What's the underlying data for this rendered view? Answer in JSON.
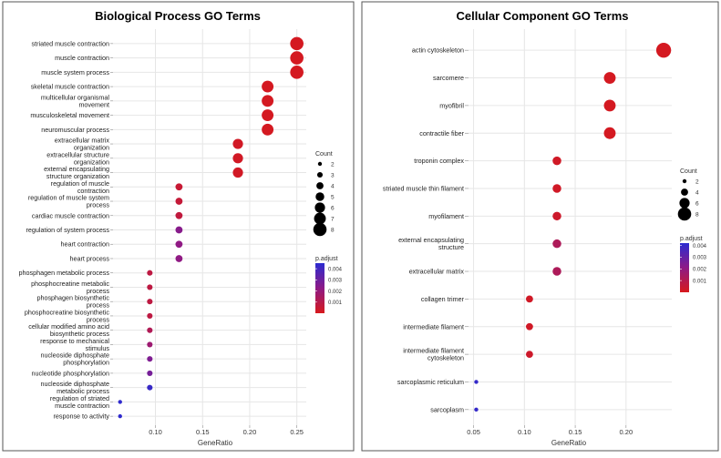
{
  "left_panel": {
    "title": "Biological Process GO Terms",
    "xlabel": "GeneRatio",
    "legend_count_title": "Count",
    "legend_padj_title": "p.adjust"
  },
  "right_panel": {
    "title": "Cellular Component GO Terms",
    "xlabel": "GeneRatio",
    "legend_count_title": "Count",
    "legend_padj_title": "p.adjust"
  },
  "colors": {
    "high_sig": "#d7191c",
    "mid": "#8e1a86",
    "low_sig": "#2b2bd0",
    "panel_border": "#555555",
    "grid": "#e6e6e6"
  },
  "chart_data": [
    {
      "type": "scatter",
      "title": "Biological Process GO Terms",
      "xlabel": "GeneRatio",
      "ylabel": "",
      "xlim": [
        0.055,
        0.26
      ],
      "xticks": [
        0.1,
        0.15,
        0.2,
        0.25
      ],
      "xtick_labels": [
        "0.10",
        "0.15",
        "0.20",
        "0.25"
      ],
      "grid": true,
      "legend_placement": "right",
      "size_legend": {
        "title": "Count",
        "values": [
          2,
          3,
          4,
          5,
          6,
          7,
          8
        ]
      },
      "color_legend": {
        "title": "p.adjust",
        "range": [
          0.0,
          0.0045
        ],
        "ticks": [
          0.004,
          0.003,
          0.002,
          0.001
        ],
        "tick_labels": [
          "0.004",
          "0.003",
          "0.002",
          "0.001"
        ]
      },
      "points": [
        {
          "term": [
            "striated muscle contraction"
          ],
          "x": 0.25,
          "count": 8,
          "p_adjust": 0.0001
        },
        {
          "term": [
            "muscle contraction"
          ],
          "x": 0.25,
          "count": 8,
          "p_adjust": 0.0001
        },
        {
          "term": [
            "muscle system process"
          ],
          "x": 0.25,
          "count": 8,
          "p_adjust": 0.0001
        },
        {
          "term": [
            "skeletal muscle contraction"
          ],
          "x": 0.219,
          "count": 7,
          "p_adjust": 0.0001
        },
        {
          "term": [
            "multicellular organismal",
            "movement"
          ],
          "x": 0.219,
          "count": 7,
          "p_adjust": 0.0001
        },
        {
          "term": [
            "musculoskeletal movement"
          ],
          "x": 0.219,
          "count": 7,
          "p_adjust": 0.0001
        },
        {
          "term": [
            "neuromuscular process"
          ],
          "x": 0.219,
          "count": 7,
          "p_adjust": 0.0001
        },
        {
          "term": [
            "extracellular matrix",
            "organization"
          ],
          "x": 0.1875,
          "count": 6,
          "p_adjust": 0.0002
        },
        {
          "term": [
            "extracellular structure",
            "organization"
          ],
          "x": 0.1875,
          "count": 6,
          "p_adjust": 0.0002
        },
        {
          "term": [
            "external encapsulating",
            "structure organization"
          ],
          "x": 0.1875,
          "count": 6,
          "p_adjust": 0.0002
        },
        {
          "term": [
            "regulation of muscle",
            "contraction"
          ],
          "x": 0.125,
          "count": 4,
          "p_adjust": 0.0005
        },
        {
          "term": [
            "regulation of muscle system",
            "process"
          ],
          "x": 0.125,
          "count": 4,
          "p_adjust": 0.0006
        },
        {
          "term": [
            "cardiac muscle contraction"
          ],
          "x": 0.125,
          "count": 4,
          "p_adjust": 0.0007
        },
        {
          "term": [
            "regulation of system process"
          ],
          "x": 0.125,
          "count": 4,
          "p_adjust": 0.0024
        },
        {
          "term": [
            "heart contraction"
          ],
          "x": 0.125,
          "count": 4,
          "p_adjust": 0.0022
        },
        {
          "term": [
            "heart process"
          ],
          "x": 0.125,
          "count": 4,
          "p_adjust": 0.0022
        },
        {
          "term": [
            "phosphagen metabolic process"
          ],
          "x": 0.094,
          "count": 3,
          "p_adjust": 0.0008
        },
        {
          "term": [
            "phosphocreatine metabolic",
            "process"
          ],
          "x": 0.094,
          "count": 3,
          "p_adjust": 0.0008
        },
        {
          "term": [
            "phosphagen biosynthetic",
            "process"
          ],
          "x": 0.094,
          "count": 3,
          "p_adjust": 0.0008
        },
        {
          "term": [
            "phosphocreatine biosynthetic",
            "process"
          ],
          "x": 0.094,
          "count": 3,
          "p_adjust": 0.0008
        },
        {
          "term": [
            "cellular modified amino acid",
            "biosynthetic process"
          ],
          "x": 0.094,
          "count": 3,
          "p_adjust": 0.0012
        },
        {
          "term": [
            "response to mechanical",
            "stimulus"
          ],
          "x": 0.094,
          "count": 3,
          "p_adjust": 0.0018
        },
        {
          "term": [
            "nucleoside diphosphate",
            "phosphorylation"
          ],
          "x": 0.094,
          "count": 3,
          "p_adjust": 0.0026
        },
        {
          "term": [
            "nucleotide phosphorylation"
          ],
          "x": 0.094,
          "count": 3,
          "p_adjust": 0.0028
        },
        {
          "term": [
            "nucleoside diphosphate",
            "metabolic process"
          ],
          "x": 0.094,
          "count": 3,
          "p_adjust": 0.0042
        },
        {
          "term": [
            "regulation of striated",
            "muscle contraction"
          ],
          "x": 0.0625,
          "count": 2,
          "p_adjust": 0.0044
        },
        {
          "term": [
            "response to activity"
          ],
          "x": 0.0625,
          "count": 2,
          "p_adjust": 0.0044
        }
      ]
    },
    {
      "type": "scatter",
      "title": "Cellular Component GO Terms",
      "xlabel": "GeneRatio",
      "ylabel": "",
      "xlim": [
        0.045,
        0.245
      ],
      "xticks": [
        0.05,
        0.1,
        0.15,
        0.2
      ],
      "xtick_labels": [
        "0.05",
        "0.10",
        "0.15",
        "0.20"
      ],
      "grid": true,
      "legend_placement": "right",
      "size_legend": {
        "title": "Count",
        "values": [
          2,
          4,
          6,
          8
        ]
      },
      "color_legend": {
        "title": "p.adjust",
        "range": [
          0.0,
          0.0042
        ],
        "ticks": [
          0.004,
          0.003,
          0.002,
          0.001
        ],
        "tick_labels": [
          "0.004",
          "0.003",
          "0.002",
          "0.001"
        ]
      },
      "points": [
        {
          "term": [
            "actin cytoskeleton"
          ],
          "x": 0.237,
          "count": 9,
          "p_adjust": 0.0001
        },
        {
          "term": [
            "sarcomere"
          ],
          "x": 0.184,
          "count": 7,
          "p_adjust": 0.0001
        },
        {
          "term": [
            "myofibril"
          ],
          "x": 0.184,
          "count": 7,
          "p_adjust": 0.0001
        },
        {
          "term": [
            "contractile fiber"
          ],
          "x": 0.184,
          "count": 7,
          "p_adjust": 0.0001
        },
        {
          "term": [
            "troponin complex"
          ],
          "x": 0.132,
          "count": 5,
          "p_adjust": 0.0002
        },
        {
          "term": [
            "striated muscle thin filament"
          ],
          "x": 0.132,
          "count": 5,
          "p_adjust": 0.0002
        },
        {
          "term": [
            "myofilament"
          ],
          "x": 0.132,
          "count": 5,
          "p_adjust": 0.0003
        },
        {
          "term": [
            "external encapsulating",
            "structure"
          ],
          "x": 0.132,
          "count": 5,
          "p_adjust": 0.0012
        },
        {
          "term": [
            "extracellular matrix"
          ],
          "x": 0.132,
          "count": 5,
          "p_adjust": 0.0012
        },
        {
          "term": [
            "collagen trimer"
          ],
          "x": 0.105,
          "count": 4,
          "p_adjust": 0.0002
        },
        {
          "term": [
            "intermediate filament"
          ],
          "x": 0.105,
          "count": 4,
          "p_adjust": 0.0002
        },
        {
          "term": [
            "intermediate filament",
            "cytoskeleton"
          ],
          "x": 0.105,
          "count": 4,
          "p_adjust": 0.0003
        },
        {
          "term": [
            "sarcoplasmic reticulum"
          ],
          "x": 0.0526,
          "count": 2,
          "p_adjust": 0.004
        },
        {
          "term": [
            "sarcoplasm"
          ],
          "x": 0.0526,
          "count": 2,
          "p_adjust": 0.004
        }
      ]
    }
  ]
}
